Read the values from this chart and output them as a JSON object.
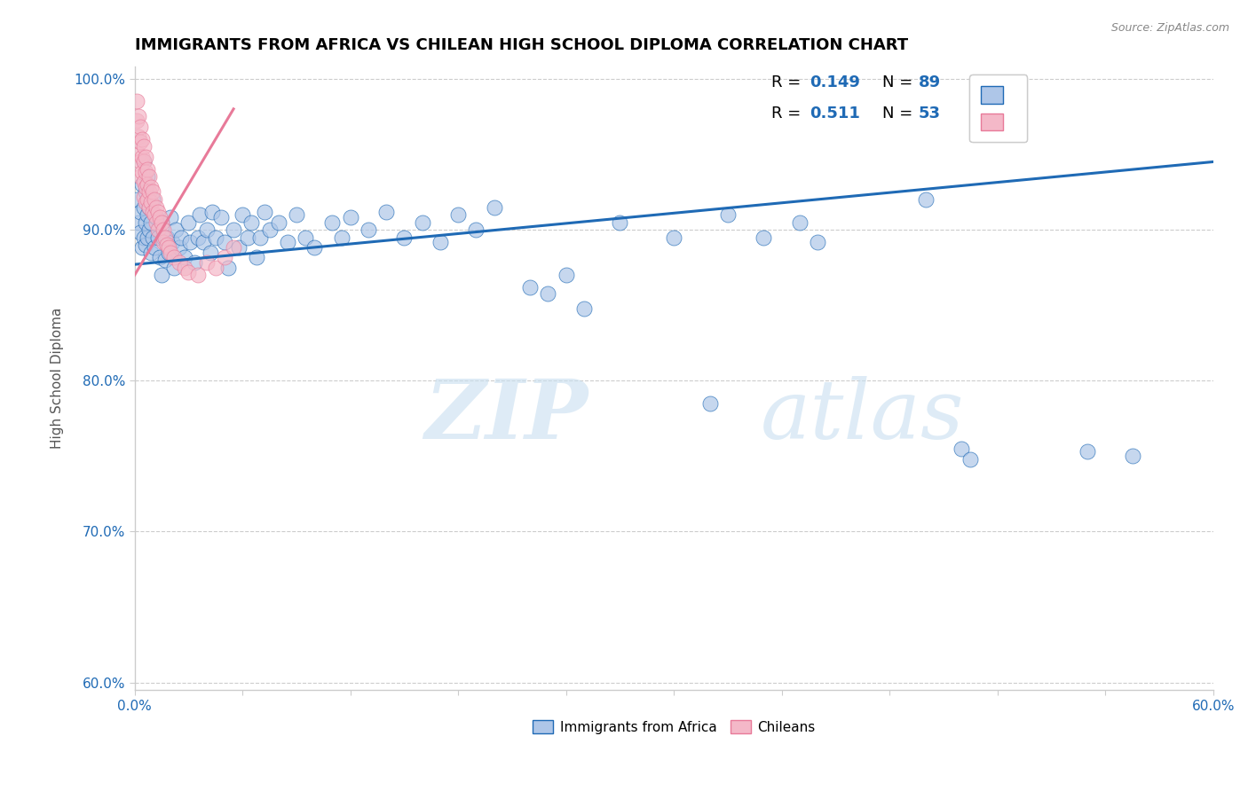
{
  "title": "IMMIGRANTS FROM AFRICA VS CHILEAN HIGH SCHOOL DIPLOMA CORRELATION CHART",
  "source": "Source: ZipAtlas.com",
  "xlabel": "",
  "ylabel": "High School Diploma",
  "xlim": [
    0.0,
    0.6
  ],
  "ylim": [
    0.595,
    1.008
  ],
  "xticks": [
    0.0,
    0.06,
    0.12,
    0.18,
    0.24,
    0.3,
    0.36,
    0.42,
    0.48,
    0.54,
    0.6
  ],
  "yticks": [
    0.6,
    0.7,
    0.8,
    0.9,
    1.0
  ],
  "ytick_labels": [
    "60.0%",
    "70.0%",
    "80.0%",
    "90.0%",
    "100.0%"
  ],
  "legend_R_blue": "0.149",
  "legend_N_blue": "89",
  "legend_R_pink": "0.511",
  "legend_N_pink": "53",
  "blue_color": "#aec6e8",
  "blue_line_color": "#1f6ab5",
  "pink_color": "#f4b8c8",
  "pink_line_color": "#e87a99",
  "blue_trend": [
    0.0,
    0.6,
    0.877,
    0.945
  ],
  "pink_trend": [
    0.0,
    0.055,
    0.87,
    0.98
  ],
  "blue_scatter": [
    [
      0.001,
      0.92
    ],
    [
      0.002,
      0.905
    ],
    [
      0.003,
      0.898
    ],
    [
      0.003,
      0.912
    ],
    [
      0.004,
      0.888
    ],
    [
      0.004,
      0.93
    ],
    [
      0.005,
      0.915
    ],
    [
      0.005,
      0.895
    ],
    [
      0.005,
      0.945
    ],
    [
      0.006,
      0.905
    ],
    [
      0.006,
      0.89
    ],
    [
      0.006,
      0.925
    ],
    [
      0.007,
      0.91
    ],
    [
      0.007,
      0.895
    ],
    [
      0.007,
      0.935
    ],
    [
      0.008,
      0.9
    ],
    [
      0.008,
      0.915
    ],
    [
      0.009,
      0.885
    ],
    [
      0.009,
      0.905
    ],
    [
      0.01,
      0.895
    ],
    [
      0.01,
      0.92
    ],
    [
      0.011,
      0.888
    ],
    [
      0.012,
      0.908
    ],
    [
      0.013,
      0.895
    ],
    [
      0.014,
      0.882
    ],
    [
      0.015,
      0.905
    ],
    [
      0.015,
      0.87
    ],
    [
      0.016,
      0.895
    ],
    [
      0.017,
      0.88
    ],
    [
      0.018,
      0.895
    ],
    [
      0.019,
      0.885
    ],
    [
      0.02,
      0.908
    ],
    [
      0.021,
      0.892
    ],
    [
      0.022,
      0.875
    ],
    [
      0.023,
      0.9
    ],
    [
      0.025,
      0.888
    ],
    [
      0.026,
      0.895
    ],
    [
      0.028,
      0.882
    ],
    [
      0.03,
      0.905
    ],
    [
      0.031,
      0.892
    ],
    [
      0.033,
      0.878
    ],
    [
      0.035,
      0.895
    ],
    [
      0.036,
      0.91
    ],
    [
      0.038,
      0.892
    ],
    [
      0.04,
      0.9
    ],
    [
      0.042,
      0.885
    ],
    [
      0.043,
      0.912
    ],
    [
      0.045,
      0.895
    ],
    [
      0.048,
      0.908
    ],
    [
      0.05,
      0.892
    ],
    [
      0.052,
      0.875
    ],
    [
      0.055,
      0.9
    ],
    [
      0.058,
      0.888
    ],
    [
      0.06,
      0.91
    ],
    [
      0.063,
      0.895
    ],
    [
      0.065,
      0.905
    ],
    [
      0.068,
      0.882
    ],
    [
      0.07,
      0.895
    ],
    [
      0.072,
      0.912
    ],
    [
      0.075,
      0.9
    ],
    [
      0.08,
      0.905
    ],
    [
      0.085,
      0.892
    ],
    [
      0.09,
      0.91
    ],
    [
      0.095,
      0.895
    ],
    [
      0.1,
      0.888
    ],
    [
      0.11,
      0.905
    ],
    [
      0.115,
      0.895
    ],
    [
      0.12,
      0.908
    ],
    [
      0.13,
      0.9
    ],
    [
      0.14,
      0.912
    ],
    [
      0.15,
      0.895
    ],
    [
      0.16,
      0.905
    ],
    [
      0.17,
      0.892
    ],
    [
      0.18,
      0.91
    ],
    [
      0.19,
      0.9
    ],
    [
      0.2,
      0.915
    ],
    [
      0.22,
      0.862
    ],
    [
      0.23,
      0.858
    ],
    [
      0.24,
      0.87
    ],
    [
      0.25,
      0.848
    ],
    [
      0.27,
      0.905
    ],
    [
      0.3,
      0.895
    ],
    [
      0.32,
      0.785
    ],
    [
      0.33,
      0.91
    ],
    [
      0.35,
      0.895
    ],
    [
      0.37,
      0.905
    ],
    [
      0.38,
      0.892
    ],
    [
      0.44,
      0.92
    ],
    [
      0.46,
      0.755
    ],
    [
      0.465,
      0.748
    ],
    [
      0.53,
      0.753
    ],
    [
      0.555,
      0.75
    ]
  ],
  "pink_scatter": [
    [
      0.001,
      0.985
    ],
    [
      0.001,
      0.972
    ],
    [
      0.002,
      0.975
    ],
    [
      0.002,
      0.962
    ],
    [
      0.002,
      0.95
    ],
    [
      0.003,
      0.968
    ],
    [
      0.003,
      0.958
    ],
    [
      0.003,
      0.945
    ],
    [
      0.003,
      0.935
    ],
    [
      0.004,
      0.96
    ],
    [
      0.004,
      0.948
    ],
    [
      0.004,
      0.938
    ],
    [
      0.005,
      0.955
    ],
    [
      0.005,
      0.945
    ],
    [
      0.005,
      0.932
    ],
    [
      0.005,
      0.922
    ],
    [
      0.006,
      0.948
    ],
    [
      0.006,
      0.938
    ],
    [
      0.006,
      0.928
    ],
    [
      0.006,
      0.918
    ],
    [
      0.007,
      0.94
    ],
    [
      0.007,
      0.93
    ],
    [
      0.007,
      0.92
    ],
    [
      0.008,
      0.935
    ],
    [
      0.008,
      0.925
    ],
    [
      0.008,
      0.915
    ],
    [
      0.009,
      0.928
    ],
    [
      0.009,
      0.918
    ],
    [
      0.01,
      0.925
    ],
    [
      0.01,
      0.912
    ],
    [
      0.011,
      0.92
    ],
    [
      0.011,
      0.91
    ],
    [
      0.012,
      0.915
    ],
    [
      0.012,
      0.905
    ],
    [
      0.013,
      0.912
    ],
    [
      0.013,
      0.9
    ],
    [
      0.014,
      0.908
    ],
    [
      0.015,
      0.905
    ],
    [
      0.016,
      0.9
    ],
    [
      0.016,
      0.892
    ],
    [
      0.017,
      0.895
    ],
    [
      0.018,
      0.89
    ],
    [
      0.019,
      0.888
    ],
    [
      0.02,
      0.885
    ],
    [
      0.022,
      0.882
    ],
    [
      0.025,
      0.878
    ],
    [
      0.028,
      0.875
    ],
    [
      0.03,
      0.872
    ],
    [
      0.035,
      0.87
    ],
    [
      0.04,
      0.878
    ],
    [
      0.045,
      0.875
    ],
    [
      0.05,
      0.882
    ],
    [
      0.055,
      0.888
    ]
  ],
  "watermark_zip": "ZIP",
  "watermark_atlas": "atlas",
  "title_fontsize": 13,
  "axis_label_fontsize": 11,
  "tick_fontsize": 11
}
